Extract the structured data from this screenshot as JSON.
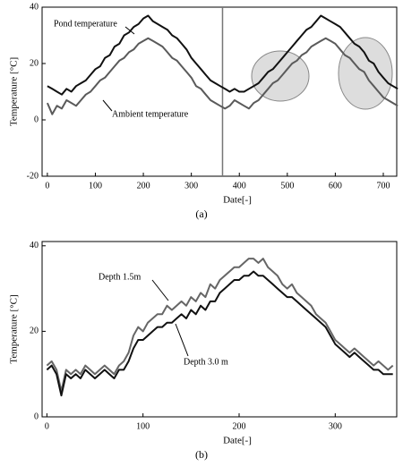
{
  "chart_data": [
    {
      "type": "line",
      "xlabel": "Date[-]",
      "ylabel": "Temperature  [°C]",
      "caption": "(a)",
      "annotations": [
        "Pond temperature",
        "Ambient temperature"
      ],
      "x": [
        0,
        10,
        20,
        30,
        40,
        50,
        60,
        70,
        80,
        90,
        100,
        110,
        120,
        130,
        140,
        150,
        160,
        170,
        180,
        190,
        200,
        210,
        220,
        230,
        240,
        250,
        260,
        270,
        280,
        290,
        300,
        310,
        320,
        330,
        340,
        350,
        360,
        370,
        380,
        390,
        400,
        410,
        420,
        430,
        440,
        450,
        460,
        470,
        480,
        490,
        500,
        510,
        520,
        530,
        540,
        550,
        560,
        570,
        580,
        590,
        600,
        610,
        620,
        630,
        640,
        650,
        660,
        670,
        680,
        690,
        700,
        710,
        720,
        730
      ],
      "series": [
        {
          "name": "Pond temperature",
          "color": "#111111",
          "values": [
            12,
            11,
            10,
            9,
            11,
            10,
            12,
            13,
            14,
            16,
            18,
            19,
            22,
            23,
            26,
            27,
            30,
            31,
            33,
            34,
            36,
            37,
            35,
            34,
            33,
            32,
            30,
            29,
            27,
            25,
            22,
            20,
            18,
            16,
            14,
            13,
            12,
            11,
            10,
            11,
            10,
            10,
            11,
            12,
            13,
            15,
            17,
            18,
            20,
            22,
            24,
            26,
            28,
            30,
            32,
            33,
            35,
            37,
            36,
            35,
            34,
            33,
            31,
            29,
            27,
            26,
            24,
            21,
            20,
            17,
            15,
            13,
            12,
            11
          ]
        },
        {
          "name": "Ambient temperature",
          "color": "#5a5a5a",
          "values": [
            6,
            2,
            5,
            4,
            7,
            6,
            5,
            7,
            9,
            10,
            12,
            14,
            15,
            17,
            19,
            21,
            22,
            24,
            25,
            27,
            28,
            29,
            28,
            27,
            26,
            24,
            22,
            21,
            19,
            17,
            15,
            12,
            11,
            9,
            7,
            6,
            5,
            4,
            5,
            7,
            6,
            5,
            4,
            6,
            7,
            9,
            11,
            13,
            14,
            16,
            18,
            20,
            21,
            23,
            24,
            26,
            27,
            28,
            29,
            28,
            27,
            25,
            23,
            22,
            20,
            18,
            17,
            14,
            12,
            10,
            8,
            7,
            6,
            5
          ]
        }
      ],
      "vline": 365,
      "xlim": [
        -11,
        728
      ],
      "xticks": [
        0,
        100,
        200,
        300,
        400,
        500,
        600,
        700
      ],
      "ylim": [
        -20,
        40
      ],
      "yticks": [
        -20,
        0,
        20,
        40
      ]
    },
    {
      "type": "line",
      "xlabel": "Date[-]",
      "ylabel": "Temperature  [°C]",
      "caption": "(b)",
      "annotations": [
        "Depth 1.5m",
        "Depth 3.0 m"
      ],
      "x": [
        0,
        5,
        10,
        15,
        20,
        25,
        30,
        35,
        40,
        45,
        50,
        55,
        60,
        65,
        70,
        75,
        80,
        85,
        90,
        95,
        100,
        105,
        110,
        115,
        120,
        125,
        130,
        135,
        140,
        145,
        150,
        155,
        160,
        165,
        170,
        175,
        180,
        185,
        190,
        195,
        200,
        205,
        210,
        215,
        220,
        225,
        230,
        235,
        240,
        245,
        250,
        255,
        260,
        265,
        270,
        275,
        280,
        285,
        290,
        295,
        300,
        305,
        310,
        315,
        320,
        325,
        330,
        335,
        340,
        345,
        350,
        355,
        360
      ],
      "series": [
        {
          "name": "Depth 1.5m",
          "color": "#666666",
          "values": [
            12,
            13,
            11,
            6,
            11,
            10,
            11,
            10,
            12,
            11,
            10,
            11,
            12,
            11,
            10,
            12,
            13,
            15,
            19,
            21,
            20,
            22,
            23,
            24,
            24,
            26,
            25,
            26,
            27,
            26,
            28,
            27,
            29,
            28,
            31,
            30,
            32,
            33,
            34,
            35,
            35,
            36,
            37,
            37,
            36,
            37,
            35,
            34,
            33,
            31,
            30,
            31,
            29,
            28,
            27,
            26,
            24,
            23,
            22,
            20,
            18,
            17,
            16,
            15,
            16,
            15,
            14,
            13,
            12,
            13,
            12,
            11,
            12
          ]
        },
        {
          "name": "Depth 3.0 m",
          "color": "#111111",
          "values": [
            11,
            12,
            10,
            5,
            10,
            9,
            10,
            9,
            11,
            10,
            9,
            10,
            11,
            10,
            9,
            11,
            11,
            13,
            16,
            18,
            18,
            19,
            20,
            21,
            21,
            22,
            22,
            23,
            24,
            23,
            25,
            24,
            26,
            25,
            27,
            27,
            29,
            30,
            31,
            32,
            32,
            33,
            33,
            34,
            33,
            33,
            32,
            31,
            30,
            29,
            28,
            28,
            27,
            26,
            25,
            24,
            23,
            22,
            21,
            19,
            17,
            16,
            15,
            14,
            15,
            14,
            13,
            12,
            11,
            11,
            10,
            10,
            10
          ]
        }
      ],
      "xlim": [
        -5,
        364
      ],
      "xticks": [
        0,
        100,
        200,
        300
      ],
      "ylim": [
        0,
        41
      ],
      "yticks": [
        0,
        20,
        40
      ]
    }
  ]
}
